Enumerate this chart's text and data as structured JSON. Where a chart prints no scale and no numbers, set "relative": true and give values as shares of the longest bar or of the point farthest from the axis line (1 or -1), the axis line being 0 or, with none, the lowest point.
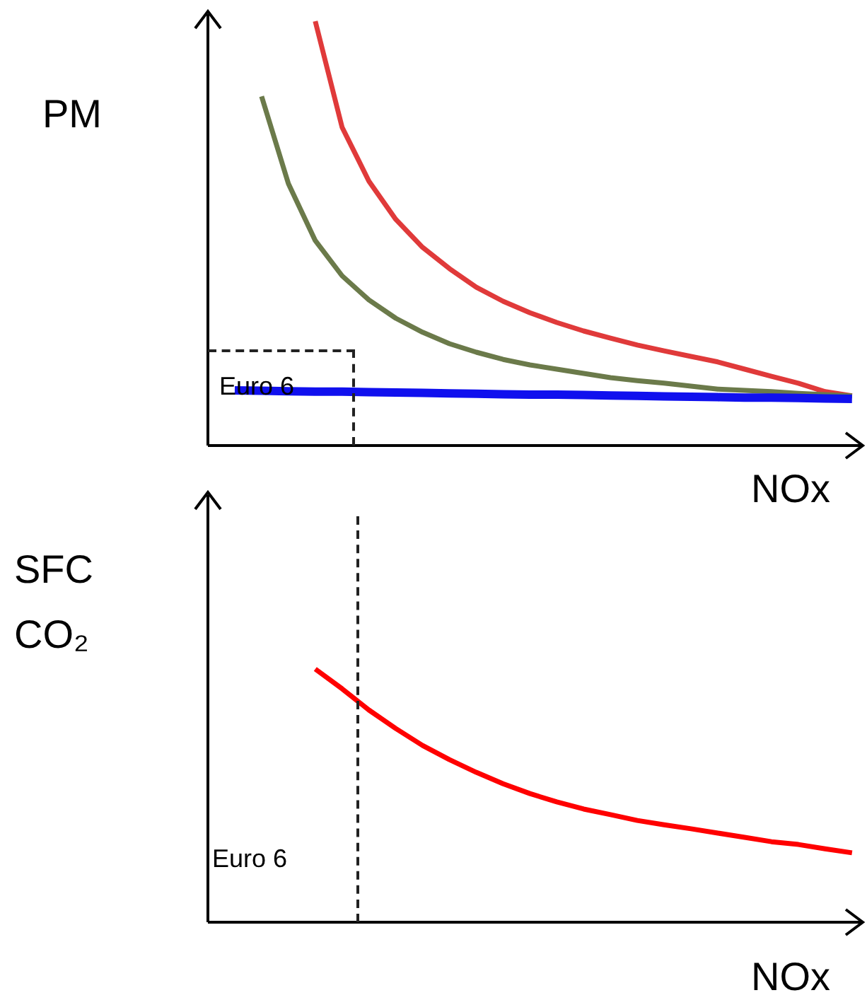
{
  "chart_data": [
    {
      "type": "line",
      "relative": true,
      "xlabel": "NOx",
      "ylabel": "PM",
      "annotations": [
        "Euro 6"
      ],
      "categories": [
        null,
        null,
        null,
        null,
        null,
        null,
        null,
        null,
        null,
        null,
        null,
        null,
        null,
        null,
        null,
        null,
        null,
        null,
        null,
        null,
        null,
        null,
        null,
        null,
        null
      ],
      "series": [
        {
          "color": "#e03a3a",
          "values": [
            null,
            null,
            null,
            null,
            1.0,
            0.75,
            0.623,
            0.533,
            0.467,
            0.417,
            0.373,
            0.34,
            0.313,
            0.29,
            0.27,
            0.253,
            0.237,
            0.223,
            0.21,
            0.197,
            0.18,
            0.163,
            0.147,
            0.127,
            0.117
          ]
        },
        {
          "color": "#6b7a4a",
          "values": [
            null,
            null,
            0.823,
            0.617,
            0.483,
            0.4,
            0.343,
            0.3,
            0.267,
            0.24,
            0.22,
            0.203,
            0.19,
            0.18,
            0.17,
            0.16,
            0.153,
            0.147,
            0.14,
            0.133,
            0.13,
            0.127,
            0.123,
            0.12,
            0.117
          ]
        },
        {
          "color": "#1010ee",
          "values": [
            null,
            0.13,
            0.129,
            0.128,
            0.127,
            0.127,
            0.126,
            0.125,
            0.124,
            0.123,
            0.122,
            0.121,
            0.12,
            0.12,
            0.119,
            0.118,
            0.117,
            0.116,
            0.115,
            0.114,
            0.113,
            0.113,
            0.112,
            0.111,
            0.11
          ]
        }
      ]
    },
    {
      "type": "line",
      "relative": true,
      "xlabel": "NOx",
      "ylabel": "SFC\nCO₂",
      "annotations": [
        "Euro 6"
      ],
      "categories": [
        null,
        null,
        null,
        null,
        null,
        null,
        null,
        null,
        null,
        null,
        null,
        null,
        null,
        null,
        null,
        null,
        null,
        null,
        null,
        null,
        null,
        null,
        null,
        null,
        null
      ],
      "series": [
        {
          "color": "#ff0000",
          "values": [
            null,
            null,
            null,
            null,
            1.0,
            0.922,
            0.838,
            0.765,
            0.698,
            0.642,
            0.592,
            0.547,
            0.508,
            0.475,
            0.447,
            0.425,
            0.402,
            0.385,
            0.369,
            0.352,
            0.335,
            0.318,
            0.307,
            0.29,
            0.274
          ]
        }
      ]
    }
  ]
}
